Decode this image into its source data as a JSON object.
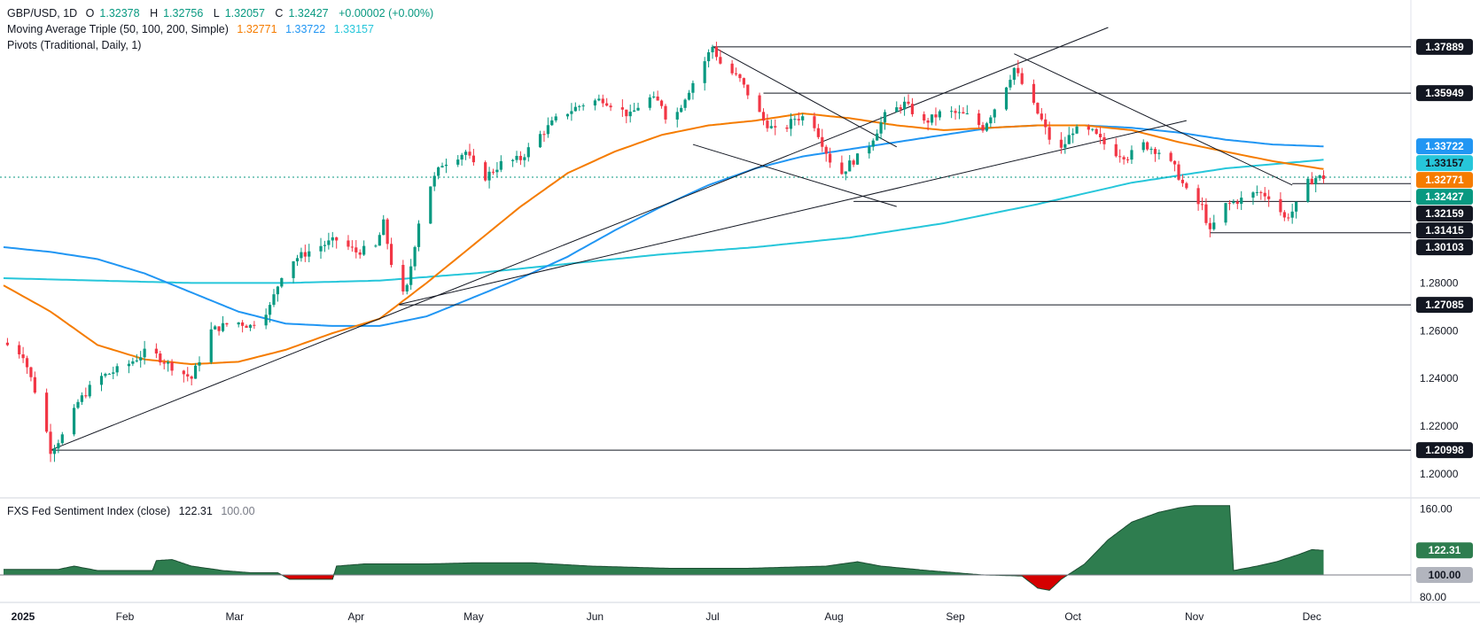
{
  "legend": {
    "symbol": "GBP/USD, 1D",
    "o_label": "O",
    "o_value": "1.32378",
    "h_label": "H",
    "h_value": "1.32756",
    "l_label": "L",
    "l_value": "1.32057",
    "c_label": "C",
    "c_value": "1.32427",
    "change": "+0.00002 (+0.00%)",
    "ma_title": "Moving Average Triple (50, 100, 200, Simple)",
    "ma50_value": "1.32771",
    "ma100_value": "1.33722",
    "ma200_value": "1.33157",
    "pivots_title": "Pivots (Traditional, Daily, 1)"
  },
  "subchart": {
    "title": "FXS Fed Sentiment Index (close)",
    "value": "122.31",
    "baseline": "100.00"
  },
  "colors": {
    "up": "#089981",
    "down": "#f23645",
    "ma50": "#f57c00",
    "ma100": "#2196f3",
    "ma200": "#26c6da",
    "sentiment_pos": "#2e7d4f",
    "sentiment_neg": "#d50000"
  },
  "chart_data": {
    "type": "candlestick",
    "y_range": [
      1.19,
      1.3985
    ],
    "y_ticks": [
      "1.20000",
      "1.22000",
      "1.24000",
      "1.26000",
      "1.28000"
    ],
    "x_ticks": [
      "2025",
      "Feb",
      "Mar",
      "Apr",
      "May",
      "Jun",
      "Jul",
      "Aug",
      "Sep",
      "Oct",
      "Nov",
      "Dec"
    ],
    "x_tick_days": [
      0,
      31,
      59,
      90,
      120,
      151,
      181,
      212,
      243,
      273,
      304,
      334
    ],
    "price_tags": [
      {
        "label": "1.37889",
        "value": 1.37889,
        "bg": "#131722",
        "fg": "#ffffff"
      },
      {
        "label": "1.35949",
        "value": 1.35949,
        "bg": "#131722",
        "fg": "#ffffff"
      },
      {
        "label": "1.33722",
        "value": 1.33722,
        "bg": "#2196f3",
        "fg": "#ffffff"
      },
      {
        "label": "1.33157",
        "value": 1.33157,
        "bg": "#26c6da",
        "fg": "#131722"
      },
      {
        "label": "1.32771",
        "value": 1.32771,
        "bg": "#f57c00",
        "fg": "#ffffff"
      },
      {
        "label": "1.32427",
        "value": 1.32427,
        "bg": "#089981",
        "fg": "#ffffff"
      },
      {
        "label": "1.32159",
        "value": 1.32159,
        "bg": "#131722",
        "fg": "#ffffff"
      },
      {
        "label": "1.31415",
        "value": 1.31415,
        "bg": "#131722",
        "fg": "#ffffff"
      },
      {
        "label": "1.30103",
        "value": 1.30103,
        "bg": "#131722",
        "fg": "#ffffff"
      },
      {
        "label": "1.27085",
        "value": 1.27085,
        "bg": "#131722",
        "fg": "#ffffff"
      },
      {
        "label": "1.20998",
        "value": 1.20998,
        "bg": "#131722",
        "fg": "#ffffff"
      }
    ],
    "pivot_lines": [
      {
        "value": 1.37889,
        "from_day": 181,
        "to_day": 370
      },
      {
        "value": 1.35949,
        "from_day": 194,
        "to_day": 370
      },
      {
        "value": 1.32159,
        "from_day": 329,
        "to_day": 370
      },
      {
        "value": 1.31415,
        "from_day": 217,
        "to_day": 370
      },
      {
        "value": 1.30103,
        "from_day": 308,
        "to_day": 370
      },
      {
        "value": 1.27085,
        "from_day": 101,
        "to_day": 370
      },
      {
        "value": 1.20998,
        "from_day": 12,
        "to_day": 370
      }
    ],
    "trend_lines": [
      {
        "from": [
          12,
          1.21
        ],
        "to": [
          282,
          1.387
        ]
      },
      {
        "from": [
          101,
          1.271
        ],
        "to": [
          302,
          1.348
        ]
      },
      {
        "from": [
          181,
          1.379
        ],
        "to": [
          228,
          1.337
        ]
      },
      {
        "from": [
          176,
          1.338
        ],
        "to": [
          228,
          1.312
        ]
      },
      {
        "from": [
          258,
          1.376
        ],
        "to": [
          329,
          1.321
        ]
      }
    ],
    "anchors": [
      [
        0,
        1.255
      ],
      [
        5,
        1.25
      ],
      [
        10,
        1.225
      ],
      [
        12,
        1.21
      ],
      [
        16,
        1.218
      ],
      [
        19,
        1.23
      ],
      [
        24,
        1.24
      ],
      [
        31,
        1.245
      ],
      [
        37,
        1.252
      ],
      [
        42,
        1.246
      ],
      [
        48,
        1.24
      ],
      [
        53,
        1.26
      ],
      [
        59,
        1.264
      ],
      [
        63,
        1.262
      ],
      [
        68,
        1.27
      ],
      [
        72,
        1.288
      ],
      [
        80,
        1.295
      ],
      [
        85,
        1.298
      ],
      [
        90,
        1.293
      ],
      [
        95,
        1.295
      ],
      [
        97,
        1.305
      ],
      [
        101,
        1.272
      ],
      [
        103,
        1.278
      ],
      [
        107,
        1.315
      ],
      [
        112,
        1.33
      ],
      [
        118,
        1.335
      ],
      [
        122,
        1.323
      ],
      [
        127,
        1.33
      ],
      [
        132,
        1.332
      ],
      [
        137,
        1.342
      ],
      [
        142,
        1.35
      ],
      [
        148,
        1.355
      ],
      [
        153,
        1.357
      ],
      [
        160,
        1.35
      ],
      [
        164,
        1.358
      ],
      [
        168,
        1.355
      ],
      [
        170,
        1.345
      ],
      [
        174,
        1.358
      ],
      [
        178,
        1.37
      ],
      [
        181,
        1.379
      ],
      [
        183,
        1.372
      ],
      [
        188,
        1.365
      ],
      [
        194,
        1.348
      ],
      [
        198,
        1.342
      ],
      [
        202,
        1.349
      ],
      [
        206,
        1.35
      ],
      [
        210,
        1.335
      ],
      [
        213,
        1.324
      ],
      [
        216,
        1.33
      ],
      [
        220,
        1.335
      ],
      [
        225,
        1.35
      ],
      [
        230,
        1.355
      ],
      [
        235,
        1.347
      ],
      [
        240,
        1.352
      ],
      [
        246,
        1.35
      ],
      [
        250,
        1.345
      ],
      [
        254,
        1.356
      ],
      [
        258,
        1.37
      ],
      [
        261,
        1.36
      ],
      [
        265,
        1.348
      ],
      [
        269,
        1.333
      ],
      [
        273,
        1.344
      ],
      [
        278,
        1.343
      ],
      [
        283,
        1.335
      ],
      [
        287,
        1.333
      ],
      [
        291,
        1.338
      ],
      [
        295,
        1.335
      ],
      [
        299,
        1.328
      ],
      [
        303,
        1.315
      ],
      [
        306,
        1.312
      ],
      [
        308,
        1.301
      ],
      [
        311,
        1.312
      ],
      [
        316,
        1.315
      ],
      [
        320,
        1.318
      ],
      [
        324,
        1.316
      ],
      [
        327,
        1.307
      ],
      [
        329,
        1.31
      ],
      [
        331,
        1.315
      ],
      [
        333,
        1.322
      ],
      [
        335,
        1.324
      ],
      [
        337,
        1.3243
      ]
    ],
    "ma50": [
      [
        0,
        1.279
      ],
      [
        12,
        1.268
      ],
      [
        24,
        1.254
      ],
      [
        36,
        1.248
      ],
      [
        48,
        1.246
      ],
      [
        60,
        1.247
      ],
      [
        72,
        1.252
      ],
      [
        84,
        1.259
      ],
      [
        96,
        1.265
      ],
      [
        108,
        1.28
      ],
      [
        120,
        1.296
      ],
      [
        132,
        1.312
      ],
      [
        144,
        1.326
      ],
      [
        156,
        1.335
      ],
      [
        168,
        1.342
      ],
      [
        180,
        1.346
      ],
      [
        192,
        1.348
      ],
      [
        204,
        1.351
      ],
      [
        216,
        1.349
      ],
      [
        228,
        1.346
      ],
      [
        240,
        1.344
      ],
      [
        252,
        1.345
      ],
      [
        264,
        1.346
      ],
      [
        276,
        1.346
      ],
      [
        288,
        1.344
      ],
      [
        300,
        1.339
      ],
      [
        312,
        1.335
      ],
      [
        324,
        1.331
      ],
      [
        337,
        1.3277
      ]
    ],
    "ma100": [
      [
        0,
        1.295
      ],
      [
        12,
        1.293
      ],
      [
        24,
        1.29
      ],
      [
        36,
        1.284
      ],
      [
        48,
        1.276
      ],
      [
        60,
        1.268
      ],
      [
        72,
        1.263
      ],
      [
        84,
        1.262
      ],
      [
        96,
        1.262
      ],
      [
        108,
        1.266
      ],
      [
        120,
        1.274
      ],
      [
        132,
        1.282
      ],
      [
        144,
        1.291
      ],
      [
        156,
        1.302
      ],
      [
        168,
        1.312
      ],
      [
        180,
        1.321
      ],
      [
        192,
        1.328
      ],
      [
        204,
        1.333
      ],
      [
        216,
        1.336
      ],
      [
        228,
        1.339
      ],
      [
        240,
        1.342
      ],
      [
        252,
        1.345
      ],
      [
        264,
        1.346
      ],
      [
        276,
        1.346
      ],
      [
        288,
        1.345
      ],
      [
        300,
        1.343
      ],
      [
        312,
        1.34
      ],
      [
        324,
        1.338
      ],
      [
        337,
        1.3372
      ]
    ],
    "ma200": [
      [
        0,
        1.282
      ],
      [
        24,
        1.281
      ],
      [
        48,
        1.28
      ],
      [
        72,
        1.28
      ],
      [
        96,
        1.281
      ],
      [
        120,
        1.284
      ],
      [
        144,
        1.288
      ],
      [
        168,
        1.292
      ],
      [
        192,
        1.295
      ],
      [
        216,
        1.299
      ],
      [
        240,
        1.305
      ],
      [
        264,
        1.313
      ],
      [
        288,
        1.322
      ],
      [
        312,
        1.328
      ],
      [
        337,
        1.3316
      ]
    ],
    "sentiment": {
      "y_ticks": [
        "80.00",
        "160.00"
      ],
      "y_range": [
        75,
        170
      ],
      "points": [
        [
          0,
          105
        ],
        [
          14,
          105
        ],
        [
          18,
          108
        ],
        [
          24,
          104
        ],
        [
          38,
          104
        ],
        [
          39,
          113
        ],
        [
          43,
          114
        ],
        [
          48,
          108
        ],
        [
          56,
          104
        ],
        [
          63,
          102
        ],
        [
          70,
          102
        ],
        [
          73,
          96
        ],
        [
          84,
          96
        ],
        [
          85,
          108
        ],
        [
          92,
          110
        ],
        [
          108,
          110
        ],
        [
          120,
          111
        ],
        [
          135,
          111
        ],
        [
          150,
          108
        ],
        [
          170,
          106
        ],
        [
          190,
          106
        ],
        [
          210,
          108
        ],
        [
          218,
          112
        ],
        [
          224,
          108
        ],
        [
          236,
          104
        ],
        [
          250,
          100
        ],
        [
          260,
          99
        ],
        [
          264,
          88
        ],
        [
          267,
          86
        ],
        [
          270,
          96
        ],
        [
          276,
          110
        ],
        [
          282,
          132
        ],
        [
          288,
          148
        ],
        [
          295,
          157
        ],
        [
          300,
          161
        ],
        [
          304,
          163
        ],
        [
          313,
          163
        ],
        [
          314,
          104
        ],
        [
          320,
          108
        ],
        [
          325,
          112
        ],
        [
          331,
          119
        ],
        [
          334,
          123
        ],
        [
          337,
          122.31
        ]
      ]
    }
  }
}
